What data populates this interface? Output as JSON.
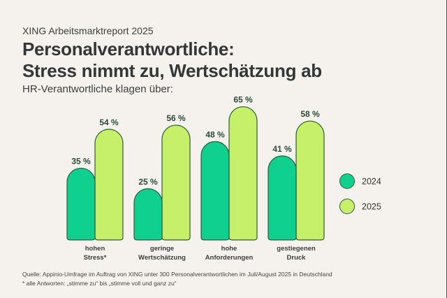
{
  "header": {
    "kicker": "XING Arbeitsmarktreport 2025",
    "title_line1": "Personalverantwortliche:",
    "title_line2": "Stress nimmt zu, Wertschätzung ab",
    "subtitle": "HR-Verantwortliche klagen über:"
  },
  "colors": {
    "series_2024": "#10d08f",
    "series_2025": "#c6ef6a",
    "outline": "#2f5a3c",
    "background": "#f5f1ec"
  },
  "chart_data": {
    "type": "bar",
    "title": "Personalverantwortliche: Stress nimmt zu, Wertschätzung ab",
    "subtitle": "HR-Verantwortliche klagen über:",
    "categories": [
      [
        "hohen",
        "Stress*"
      ],
      [
        "geringe",
        "Wertschätzung"
      ],
      [
        "hohe",
        "Anforderungen"
      ],
      [
        "gestiegenen",
        "Druck"
      ]
    ],
    "series": [
      {
        "name": "2024",
        "values": [
          35,
          25,
          48,
          41
        ]
      },
      {
        "name": "2025",
        "values": [
          54,
          56,
          65,
          58
        ]
      }
    ],
    "value_suffix": " %",
    "ylim": [
      0,
      100
    ],
    "grid": false,
    "legend": "right"
  },
  "footer": {
    "source": "Quelle: Appinio-Umfrage im Auftrag von XING unter 300 Personalverantwortlichen im Juli/August 2025 in Deutschland",
    "note": "* alle Antworten: „stimme zu“ bis „stimme voll und ganz zu“"
  }
}
